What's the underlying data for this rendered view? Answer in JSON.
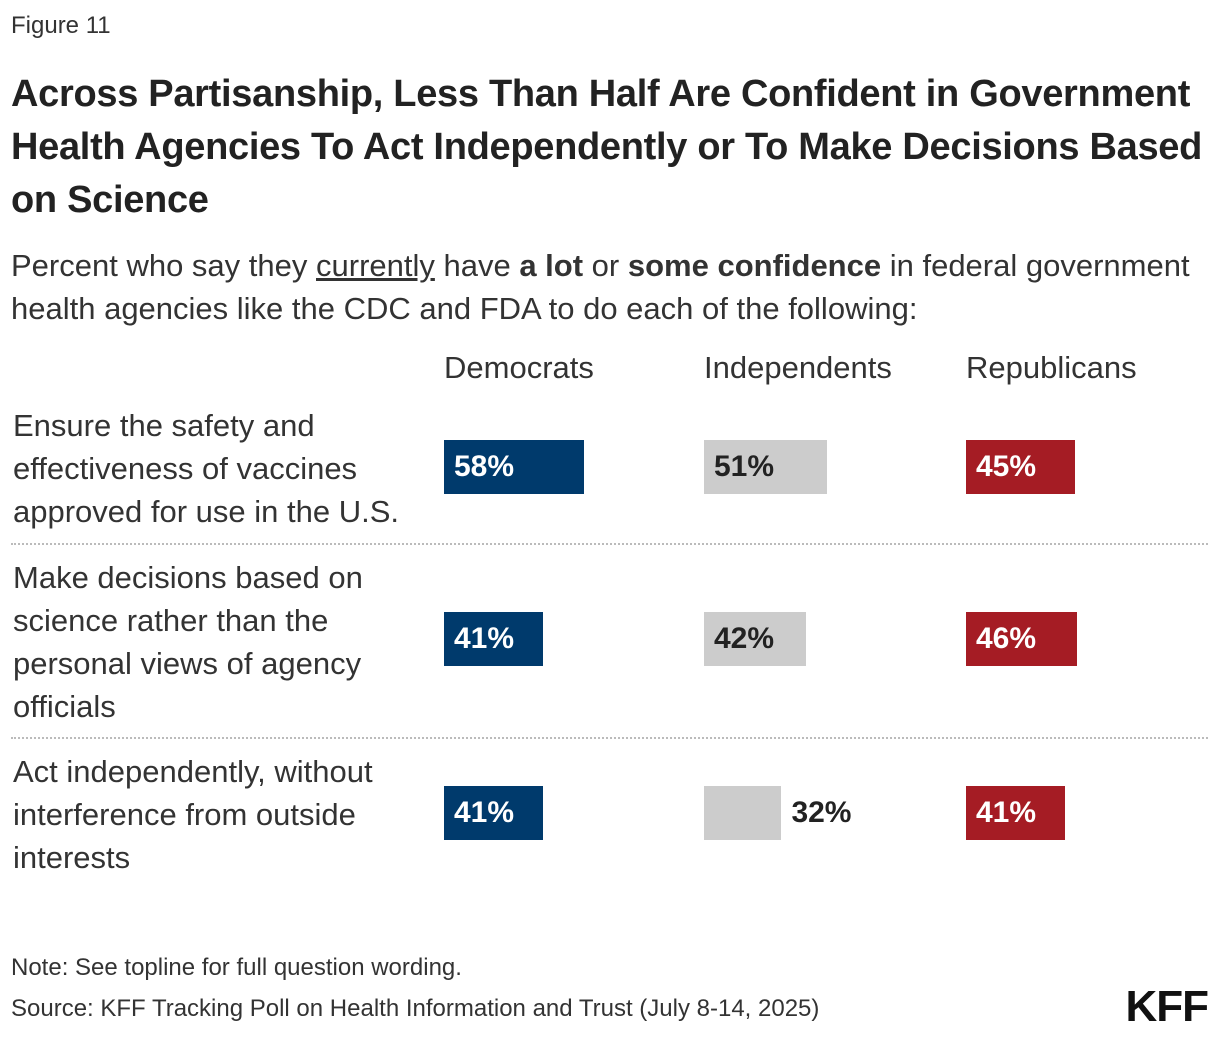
{
  "figure_label": "Figure 11",
  "title": "Across Partisanship, Less Than Half Are Confident in Government Health Agencies To Act Independently or To Make Decisions Based on Science",
  "subtitle": {
    "part1": "Percent who say they ",
    "underlined": "currently",
    "part2": " have ",
    "bold1": "a lot",
    "part3": " or ",
    "bold2": "some confidence",
    "part4": " in federal government health agencies like the CDC and FDA to do each of the following:"
  },
  "chart_data": {
    "type": "bar",
    "orientation": "horizontal",
    "layout": "small-multiples",
    "title": "Across Partisanship, Less Than Half Are Confident in Government Health Agencies To Act Independently or To Make Decisions Based on Science",
    "unit": "%",
    "categories": [
      "Ensure the safety and effectiveness of vaccines approved for use in the U.S.",
      "Make decisions based on science rather than the personal views of agency officials",
      "Act independently, without interference from outside interests"
    ],
    "series": [
      {
        "name": "Democrats",
        "color": "#003a6c",
        "values": [
          58,
          41,
          41
        ]
      },
      {
        "name": "Independents",
        "color": "#cccccc",
        "values": [
          51,
          42,
          32
        ]
      },
      {
        "name": "Republicans",
        "color": "#a51c24",
        "values": [
          45,
          46,
          41
        ]
      }
    ],
    "xlim": [
      0,
      100
    ],
    "grid": false
  },
  "note": "Note: See topline for full question wording.",
  "source": "Source: KFF Tracking Poll on Health Information and Trust (July 8-14, 2025)",
  "logo": "KFF"
}
